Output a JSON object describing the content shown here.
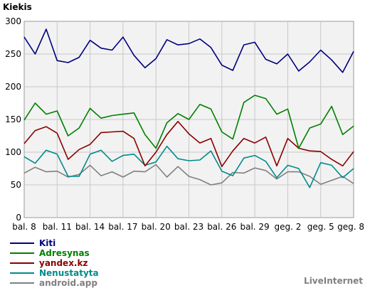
{
  "chart_data": {
    "type": "line",
    "title": "",
    "ylabel": "Kiekis",
    "xlabel": "",
    "ylim": [
      0,
      300
    ],
    "yticks": [
      0,
      50,
      100,
      150,
      200,
      250,
      300
    ],
    "grid": true,
    "legend_position": "bottom-left",
    "x_labels": [
      {
        "i": 0,
        "label": "bal. 8"
      },
      {
        "i": 3,
        "label": "bal. 11"
      },
      {
        "i": 6,
        "label": "bal. 14"
      },
      {
        "i": 9,
        "label": "bal. 17"
      },
      {
        "i": 12,
        "label": "bal. 20"
      },
      {
        "i": 15,
        "label": "bal. 23"
      },
      {
        "i": 18,
        "label": "bal. 26"
      },
      {
        "i": 21,
        "label": "bal. 29"
      },
      {
        "i": 24,
        "label": "geg. 2"
      },
      {
        "i": 27,
        "label": "geg. 5"
      },
      {
        "i": 30,
        "label": "geg. 8"
      }
    ],
    "series": [
      {
        "name": "Kiti",
        "color": "#000080",
        "values": [
          276,
          250,
          288,
          240,
          237,
          245,
          271,
          259,
          256,
          276,
          248,
          229,
          243,
          272,
          264,
          266,
          273,
          260,
          233,
          225,
          264,
          268,
          242,
          235,
          250,
          224,
          238,
          256,
          241,
          222,
          254
        ]
      },
      {
        "name": "Adresynas",
        "color": "#008000",
        "values": [
          149,
          175,
          158,
          163,
          125,
          137,
          167,
          152,
          156,
          158,
          160,
          127,
          106,
          145,
          159,
          150,
          173,
          166,
          131,
          120,
          176,
          187,
          182,
          158,
          166,
          106,
          137,
          143,
          170,
          127,
          140
        ]
      },
      {
        "name": "yandex.kz",
        "color": "#8b0000",
        "values": [
          113,
          133,
          139,
          129,
          89,
          104,
          112,
          130,
          131,
          132,
          121,
          79,
          100,
          127,
          147,
          128,
          114,
          121,
          78,
          102,
          121,
          114,
          123,
          79,
          121,
          106,
          102,
          101,
          89,
          79,
          101
        ]
      },
      {
        "name": "Nenustatyta",
        "color": "#008b8b",
        "values": [
          93,
          83,
          103,
          97,
          63,
          63,
          97,
          103,
          86,
          95,
          97,
          80,
          85,
          109,
          90,
          87,
          88,
          102,
          71,
          64,
          91,
          95,
          86,
          61,
          80,
          75,
          46,
          84,
          80,
          61,
          75
        ]
      },
      {
        "name": "android.app",
        "color": "#808080",
        "values": [
          68,
          77,
          70,
          71,
          62,
          66,
          80,
          64,
          70,
          62,
          71,
          70,
          81,
          62,
          78,
          63,
          58,
          50,
          53,
          69,
          68,
          76,
          72,
          59,
          70,
          70,
          63,
          51,
          57,
          63,
          52
        ]
      }
    ]
  },
  "branding": "LiveInternet"
}
